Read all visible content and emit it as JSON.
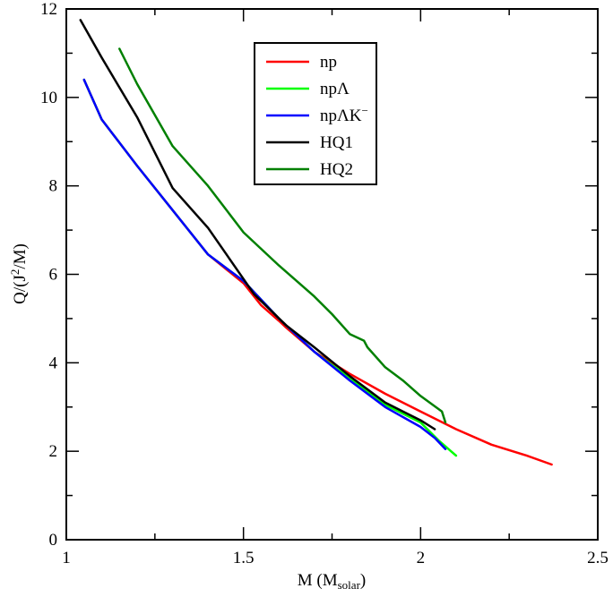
{
  "chart_data": {
    "type": "line",
    "title": "",
    "xlabel": {
      "main": "M (M",
      "sub": "solar",
      "end": ")"
    },
    "ylabel": {
      "main": "Q/(J",
      "sup": "2",
      "end": "/M)"
    },
    "xlim": [
      1,
      2.5
    ],
    "ylim": [
      0,
      12
    ],
    "xticks": [
      1,
      1.5,
      2,
      2.5
    ],
    "xtick_labels": [
      "1",
      "1.5",
      "2",
      "2.5"
    ],
    "yticks": [
      0,
      2,
      4,
      6,
      8,
      10,
      12
    ],
    "ytick_labels": [
      "0",
      "2",
      "4",
      "6",
      "8",
      "10",
      "12"
    ],
    "grid": false,
    "legend_position": "top-center",
    "series": [
      {
        "name": "np",
        "label_main": "np",
        "label_sup": "",
        "color": "#ff0000",
        "x": [
          1.05,
          1.1,
          1.2,
          1.3,
          1.4,
          1.5,
          1.55,
          1.6,
          1.62,
          1.7,
          1.8,
          1.9,
          2.0,
          2.05,
          2.1,
          2.2,
          2.3,
          2.37
        ],
        "y": [
          10.4,
          9.5,
          8.45,
          7.45,
          6.45,
          5.8,
          5.3,
          4.95,
          4.8,
          4.25,
          3.75,
          3.3,
          2.9,
          2.7,
          2.5,
          2.15,
          1.9,
          1.7
        ]
      },
      {
        "name": "npΛ",
        "label_main": "npΛ",
        "label_sup": "",
        "color": "#00ff00",
        "x": [
          1.05,
          1.1,
          1.2,
          1.3,
          1.4,
          1.5,
          1.6,
          1.7,
          1.8,
          1.9,
          2.0,
          2.05,
          2.1
        ],
        "y": [
          10.4,
          9.5,
          8.45,
          7.45,
          6.45,
          5.85,
          5.0,
          4.25,
          3.65,
          3.05,
          2.65,
          2.25,
          1.9
        ]
      },
      {
        "name": "npΛK⁻",
        "label_main": "npΛK",
        "label_sup": "−",
        "color": "#0000ff",
        "x": [
          1.05,
          1.1,
          1.2,
          1.3,
          1.4,
          1.5,
          1.6,
          1.7,
          1.8,
          1.9,
          2.0,
          2.04,
          2.07
        ],
        "y": [
          10.4,
          9.5,
          8.45,
          7.45,
          6.45,
          5.85,
          5.0,
          4.25,
          3.6,
          3.0,
          2.55,
          2.3,
          2.05
        ]
      },
      {
        "name": "HQ1",
        "label_main": "HQ1",
        "label_sup": "",
        "color": "#000000",
        "x": [
          1.04,
          1.1,
          1.2,
          1.3,
          1.4,
          1.53,
          1.62,
          1.7,
          1.8,
          1.9,
          1.95,
          2.0,
          2.04
        ],
        "y": [
          11.75,
          10.9,
          9.55,
          7.95,
          7.05,
          5.55,
          4.85,
          4.35,
          3.7,
          3.1,
          2.9,
          2.7,
          2.5
        ]
      },
      {
        "name": "HQ2",
        "label_main": "HQ2",
        "label_sup": "",
        "color": "#008000",
        "x": [
          1.15,
          1.2,
          1.3,
          1.4,
          1.5,
          1.6,
          1.7,
          1.75,
          1.8,
          1.84,
          1.85,
          1.9,
          1.95,
          2.0,
          2.06,
          2.07
        ],
        "y": [
          11.1,
          10.3,
          8.9,
          8.0,
          6.95,
          6.2,
          5.5,
          5.1,
          4.65,
          4.5,
          4.35,
          3.9,
          3.6,
          3.25,
          2.9,
          2.65
        ]
      }
    ]
  }
}
